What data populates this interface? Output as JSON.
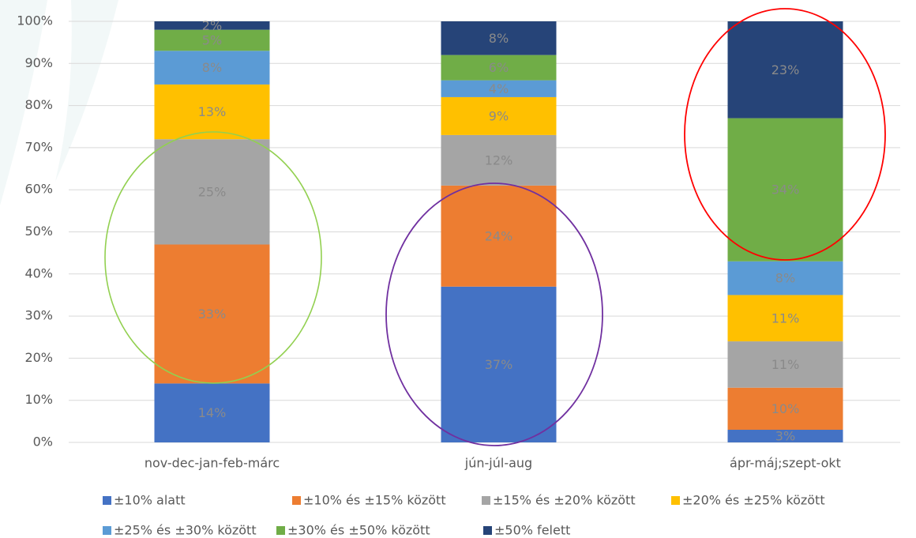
{
  "chart_data": {
    "type": "stacked_bar",
    "categories": [
      "nov-dec-jan-feb-márc",
      "jún-júl-aug",
      "ápr-máj;szept-okt"
    ],
    "series": [
      {
        "name": "±10% alatt",
        "color": "#4472c4",
        "values": [
          14,
          37,
          3
        ],
        "value_labels": [
          "14%",
          "37%",
          "3%"
        ]
      },
      {
        "name": "±10% és ±15% között",
        "color": "#ed7d31",
        "values": [
          33,
          24,
          10
        ],
        "value_labels": [
          "33%",
          "24%",
          "10%"
        ]
      },
      {
        "name": "±15% és ±20% között",
        "color": "#a5a5a5",
        "values": [
          25,
          12,
          11
        ],
        "value_labels": [
          "25%",
          "12%",
          "11%"
        ]
      },
      {
        "name": "±20% és ±25% között",
        "color": "#ffc000",
        "values": [
          13,
          9,
          11
        ],
        "value_labels": [
          "13%",
          "9%",
          "11%"
        ]
      },
      {
        "name": "±25% és ±30% között",
        "color": "#5b9bd5",
        "values": [
          8,
          4,
          8
        ],
        "value_labels": [
          "8%",
          "4%",
          "8%"
        ]
      },
      {
        "name": "±30% és ±50% között",
        "color": "#70ad47",
        "values": [
          5,
          6,
          34
        ],
        "value_labels": [
          "5%",
          "6%",
          "34%"
        ]
      },
      {
        "name": "±50% felett",
        "color": "#264478",
        "values": [
          2,
          8,
          23
        ],
        "value_labels": [
          "2%",
          "8%",
          "23%"
        ]
      }
    ],
    "ylim": [
      0,
      100
    ],
    "yticks": [
      {
        "value": 0,
        "label": "0%"
      },
      {
        "value": 10,
        "label": "10%"
      },
      {
        "value": 20,
        "label": "20%"
      },
      {
        "value": 30,
        "label": "30%"
      },
      {
        "value": 40,
        "label": "40%"
      },
      {
        "value": 50,
        "label": "50%"
      },
      {
        "value": 60,
        "label": "60%"
      },
      {
        "value": 70,
        "label": "70%"
      },
      {
        "value": 80,
        "label": "80%"
      },
      {
        "value": 90,
        "label": "90%"
      },
      {
        "value": 100,
        "label": "100%"
      }
    ],
    "grid": true,
    "legend": "bottom"
  }
}
